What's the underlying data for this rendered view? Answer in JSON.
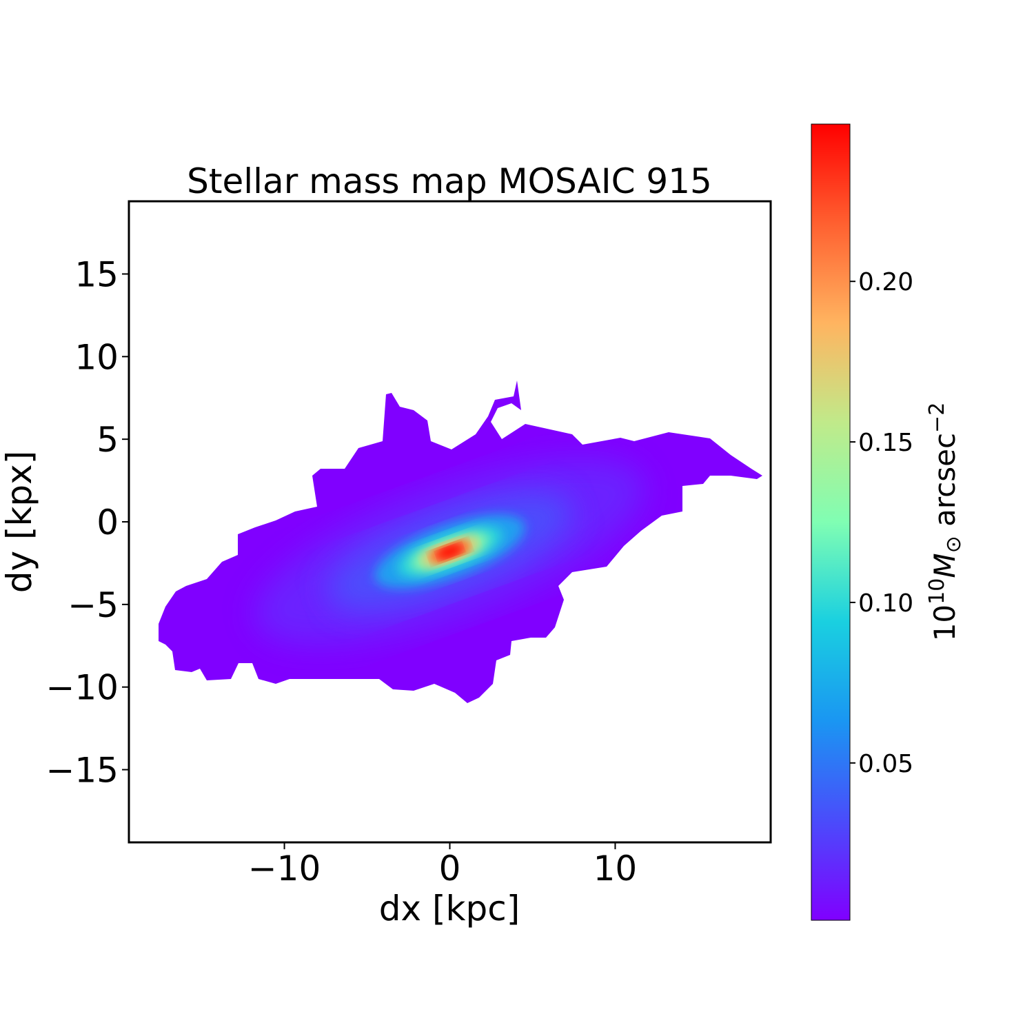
{
  "chart_data": {
    "type": "heatmap",
    "title": "Stellar mass map MOSAIC 915",
    "xlabel": "dx [kpc]",
    "ylabel": "dy [kpx]",
    "xlim": [
      -19.4,
      19.4
    ],
    "ylim": [
      -19.4,
      19.4
    ],
    "xticks": [
      -10,
      0,
      10
    ],
    "xtick_labels": [
      "−10",
      "0",
      "10"
    ],
    "yticks": [
      -15,
      -10,
      -5,
      0,
      5,
      10,
      15
    ],
    "ytick_labels": [
      "−15",
      "−10",
      "−5",
      "0",
      "5",
      "10",
      "15"
    ],
    "grid": false,
    "colormap": "rainbow",
    "colorbar": {
      "label_base": "10",
      "label_exp": "10",
      "label_unit": "M",
      "label_sub": "⊙",
      "label_rest": " arcsec",
      "label_rest_exp": "−2",
      "range": [
        0.001,
        0.249
      ],
      "ticks": [
        0.05,
        0.1,
        0.15,
        0.2
      ],
      "tick_labels": [
        "0.05",
        "0.10",
        "0.15",
        "0.20"
      ]
    },
    "peak": {
      "dx": 0,
      "dy": -1.8,
      "value": 0.24
    },
    "position_angle_deg": 20,
    "colors": {
      "min": "#8000ff",
      "max": "#ff0000"
    }
  }
}
